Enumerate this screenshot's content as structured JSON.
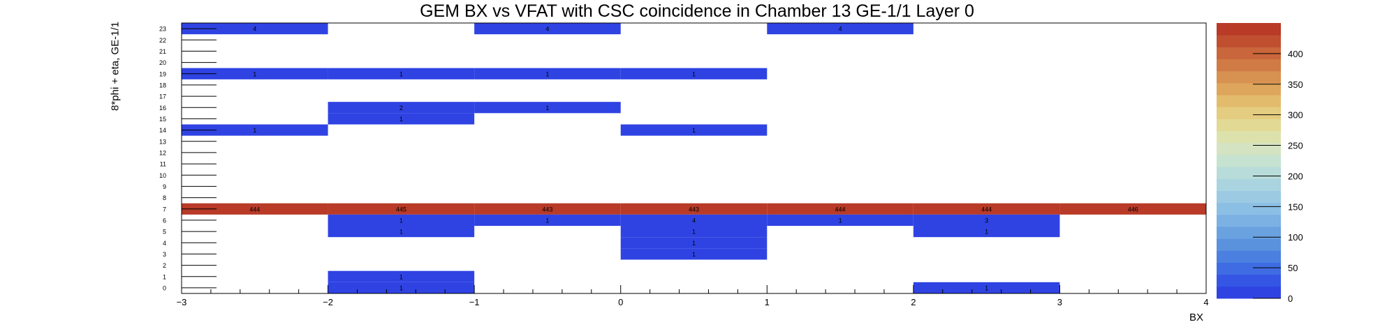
{
  "chart_data": {
    "type": "heatmap",
    "title": "GEM BX vs VFAT with CSC coincidence in Chamber 13 GE-1/1 Layer 0",
    "xlabel": "BX",
    "ylabel": "8*phi + eta, GE-1/1",
    "xlim": [
      -3,
      4
    ],
    "ylim": [
      0,
      24
    ],
    "x_ticks": [
      "−3",
      "−2",
      "−1",
      "0",
      "1",
      "2",
      "3",
      "4"
    ],
    "y_ticks": [
      "0",
      "1",
      "2",
      "3",
      "4",
      "5",
      "6",
      "7",
      "8",
      "9",
      "10",
      "11",
      "12",
      "13",
      "14",
      "15",
      "16",
      "17",
      "18",
      "19",
      "20",
      "21",
      "22",
      "23"
    ],
    "z_range": [
      0,
      450
    ],
    "z_ticks": [
      "0",
      "50",
      "100",
      "150",
      "200",
      "250",
      "300",
      "350",
      "400"
    ],
    "cells": [
      {
        "x": -3,
        "y": 23,
        "value": 4
      },
      {
        "x": -1,
        "y": 23,
        "value": 4
      },
      {
        "x": 1,
        "y": 23,
        "value": 4
      },
      {
        "x": -3,
        "y": 19,
        "value": 1
      },
      {
        "x": -2,
        "y": 19,
        "value": 1
      },
      {
        "x": -1,
        "y": 19,
        "value": 1
      },
      {
        "x": 0,
        "y": 19,
        "value": 1
      },
      {
        "x": -2,
        "y": 16,
        "value": 2
      },
      {
        "x": -1,
        "y": 16,
        "value": 1
      },
      {
        "x": -2,
        "y": 15,
        "value": 1
      },
      {
        "x": -3,
        "y": 14,
        "value": 1
      },
      {
        "x": 0,
        "y": 14,
        "value": 1
      },
      {
        "x": -3,
        "y": 7,
        "value": 444
      },
      {
        "x": -2,
        "y": 7,
        "value": 445
      },
      {
        "x": -1,
        "y": 7,
        "value": 443
      },
      {
        "x": 0,
        "y": 7,
        "value": 443
      },
      {
        "x": 1,
        "y": 7,
        "value": 444
      },
      {
        "x": 2,
        "y": 7,
        "value": 444
      },
      {
        "x": 3,
        "y": 7,
        "value": 446
      },
      {
        "x": -2,
        "y": 6,
        "value": 1
      },
      {
        "x": -1,
        "y": 6,
        "value": 1
      },
      {
        "x": 0,
        "y": 6,
        "value": 4
      },
      {
        "x": 1,
        "y": 6,
        "value": 1
      },
      {
        "x": 2,
        "y": 6,
        "value": 3
      },
      {
        "x": -2,
        "y": 5,
        "value": 1
      },
      {
        "x": 0,
        "y": 5,
        "value": 1
      },
      {
        "x": 2,
        "y": 5,
        "value": 1
      },
      {
        "x": 0,
        "y": 4,
        "value": 1
      },
      {
        "x": 0,
        "y": 3,
        "value": 1
      },
      {
        "x": -2,
        "y": 1,
        "value": 1
      },
      {
        "x": -2,
        "y": 0,
        "value": 1
      },
      {
        "x": 2,
        "y": 0,
        "value": 1
      }
    ],
    "palette": [
      "#2f43e3",
      "#3556e5",
      "#3f6ce2",
      "#4c80e0",
      "#5a92de",
      "#6aa2e0",
      "#7bb1e3",
      "#8cbfe4",
      "#9ccae2",
      "#aad4df",
      "#b8dcd9",
      "#c6e2d0",
      "#d4e4c2",
      "#dde2ad",
      "#e2d995",
      "#e4cc80",
      "#e3bb6d",
      "#dea65d",
      "#d79151",
      "#d07b45",
      "#c9663b",
      "#c04f30",
      "#b83a27"
    ],
    "grid": false,
    "legend": "colorbar-right"
  }
}
